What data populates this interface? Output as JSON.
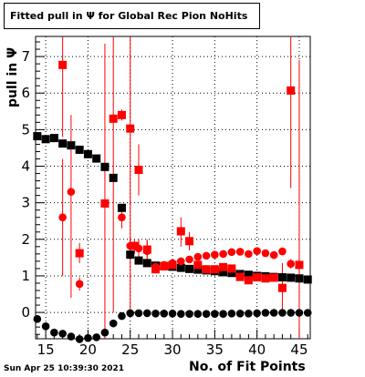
{
  "title": "Fitted pull in  Ψ  for Global Rec Pion NoHits",
  "xlabel": "No. of Fit Points",
  "ylabel": "pull in  Ψ",
  "timestamp": "Sun Apr 25 10:39:30 2021",
  "colors": {
    "black_series": "#000000",
    "red_series": "#ff0000",
    "grid": "#000000"
  },
  "chart_data": {
    "type": "scatter",
    "title": "Fitted pull in  Ψ  for Global Rec Pion NoHits",
    "xlabel": "No. of Fit Points",
    "ylabel": "pull in  Ψ",
    "xlim": [
      13.8,
      46.3
    ],
    "ylim": [
      -0.72,
      7.55
    ],
    "x_ticks": [
      15,
      20,
      25,
      30,
      35,
      40,
      45
    ],
    "y_ticks": [
      0,
      1,
      2,
      3,
      4,
      5,
      6,
      7
    ],
    "grid": true,
    "series": [
      {
        "marker": "square",
        "color": "#000000",
        "points": [
          [
            14,
            4.82
          ],
          [
            15,
            4.74
          ],
          [
            16,
            4.77
          ],
          [
            17,
            4.62
          ],
          [
            18,
            4.57
          ],
          [
            19,
            4.45
          ],
          [
            20,
            4.33
          ],
          [
            21,
            4.21
          ],
          [
            22,
            3.98
          ],
          [
            23,
            3.68
          ],
          [
            24,
            2.86
          ],
          [
            25,
            1.58
          ],
          [
            26,
            1.42
          ],
          [
            27,
            1.35
          ],
          [
            28,
            1.28
          ],
          [
            29,
            1.27
          ],
          [
            30,
            1.25
          ],
          [
            31,
            1.22
          ],
          [
            32,
            1.19
          ],
          [
            33,
            1.17
          ],
          [
            34,
            1.15
          ],
          [
            35,
            1.13
          ],
          [
            36,
            1.1
          ],
          [
            37,
            1.08
          ],
          [
            38,
            1.05
          ],
          [
            39,
            1.03
          ],
          [
            40,
            1.0
          ],
          [
            41,
            0.99
          ],
          [
            42,
            0.97
          ],
          [
            43,
            0.96
          ],
          [
            44,
            0.95
          ],
          [
            45,
            0.93
          ],
          [
            46,
            0.9
          ]
        ]
      },
      {
        "marker": "circle",
        "color": "#000000",
        "points": [
          [
            14,
            -0.18
          ],
          [
            15,
            -0.38
          ],
          [
            16,
            -0.55
          ],
          [
            17,
            -0.58
          ],
          [
            18,
            -0.66
          ],
          [
            19,
            -0.73
          ],
          [
            20,
            -0.7
          ],
          [
            21,
            -0.68
          ],
          [
            22,
            -0.55
          ],
          [
            23,
            -0.3
          ],
          [
            24,
            -0.1
          ],
          [
            25,
            -0.02
          ],
          [
            26,
            -0.02
          ],
          [
            27,
            -0.02
          ],
          [
            28,
            -0.03
          ],
          [
            29,
            -0.03
          ],
          [
            30,
            -0.03
          ],
          [
            31,
            -0.04
          ],
          [
            32,
            -0.04
          ],
          [
            33,
            -0.04
          ],
          [
            34,
            -0.04
          ],
          [
            35,
            -0.04
          ],
          [
            36,
            -0.04
          ],
          [
            37,
            -0.03
          ],
          [
            38,
            -0.03
          ],
          [
            39,
            -0.03
          ],
          [
            40,
            -0.02
          ],
          [
            41,
            -0.01
          ],
          [
            42,
            -0.01
          ],
          [
            43,
            -0.01
          ],
          [
            44,
            -0.01
          ],
          [
            45,
            -0.01
          ],
          [
            46,
            -0.01
          ]
        ]
      },
      {
        "marker": "square",
        "color": "#ff0000",
        "points": [
          [
            17,
            6.77,
            4.8,
            9.0
          ],
          [
            19,
            1.62,
            1.35,
            1.9
          ],
          [
            22,
            2.98,
            -0.75,
            7.35
          ],
          [
            23,
            5.3,
            0.0,
            7.55
          ],
          [
            24,
            5.4,
            5.25,
            5.55
          ],
          [
            25,
            5.03,
            0.0,
            7.55
          ],
          [
            26,
            3.9,
            3.2,
            4.6
          ],
          [
            25.5,
            1.82,
            1.6,
            2.0
          ],
          [
            27,
            1.72,
            1.4,
            2.0
          ],
          [
            28,
            1.18,
            1.1,
            1.26
          ],
          [
            29,
            1.26,
            1.18,
            1.34
          ],
          [
            30,
            1.3,
            1.22,
            1.38
          ],
          [
            31,
            2.22,
            1.8,
            2.6
          ],
          [
            32,
            1.95,
            1.7,
            2.2
          ],
          [
            33,
            1.3,
            1.22,
            1.38
          ],
          [
            34,
            1.18,
            1.1,
            1.26
          ],
          [
            35,
            1.18,
            1.1,
            1.26
          ],
          [
            36,
            1.24,
            1.16,
            1.32
          ],
          [
            37,
            1.2,
            1.12,
            1.28
          ],
          [
            38,
            0.97,
            0.9,
            1.04
          ],
          [
            39,
            0.88,
            0.82,
            0.94
          ],
          [
            40,
            0.96,
            0.9,
            1.02
          ],
          [
            41,
            0.93,
            0.87,
            0.99
          ],
          [
            42,
            0.95,
            0.89,
            1.01
          ],
          [
            43,
            0.67,
            0.0,
            1.35
          ],
          [
            44,
            6.07,
            3.4,
            7.55
          ],
          [
            45,
            1.3,
            -0.75,
            6.9
          ]
        ]
      },
      {
        "marker": "circle",
        "color": "#ff0000",
        "points": [
          [
            17,
            2.6,
            1.0,
            4.2
          ],
          [
            18,
            3.3,
            0.4,
            5.4
          ],
          [
            19,
            0.78,
            0.6,
            0.96
          ],
          [
            24,
            2.6,
            2.3,
            2.9
          ],
          [
            25,
            1.82,
            1.6,
            2.0
          ],
          [
            26,
            1.75,
            1.5,
            2.0
          ],
          [
            27,
            1.68,
            1.4,
            1.96
          ],
          [
            28,
            1.25,
            1.17,
            1.33
          ],
          [
            29,
            1.3,
            1.22,
            1.38
          ],
          [
            30,
            1.35,
            1.27,
            1.43
          ],
          [
            31,
            1.4,
            1.32,
            1.48
          ],
          [
            32,
            1.45,
            1.37,
            1.53
          ],
          [
            33,
            1.52,
            1.44,
            1.6
          ],
          [
            34,
            1.55,
            1.47,
            1.63
          ],
          [
            35,
            1.58,
            1.5,
            1.66
          ],
          [
            36,
            1.6,
            1.52,
            1.68
          ],
          [
            37,
            1.65,
            1.57,
            1.73
          ],
          [
            38,
            1.66,
            1.58,
            1.74
          ],
          [
            39,
            1.6,
            1.52,
            1.68
          ],
          [
            40,
            1.68,
            1.6,
            1.76
          ],
          [
            41,
            1.62,
            1.54,
            1.7
          ],
          [
            42,
            1.57,
            1.49,
            1.65
          ],
          [
            43,
            1.67,
            1.59,
            1.75
          ],
          [
            44,
            1.33,
            1.2,
            1.46
          ]
        ]
      }
    ]
  }
}
